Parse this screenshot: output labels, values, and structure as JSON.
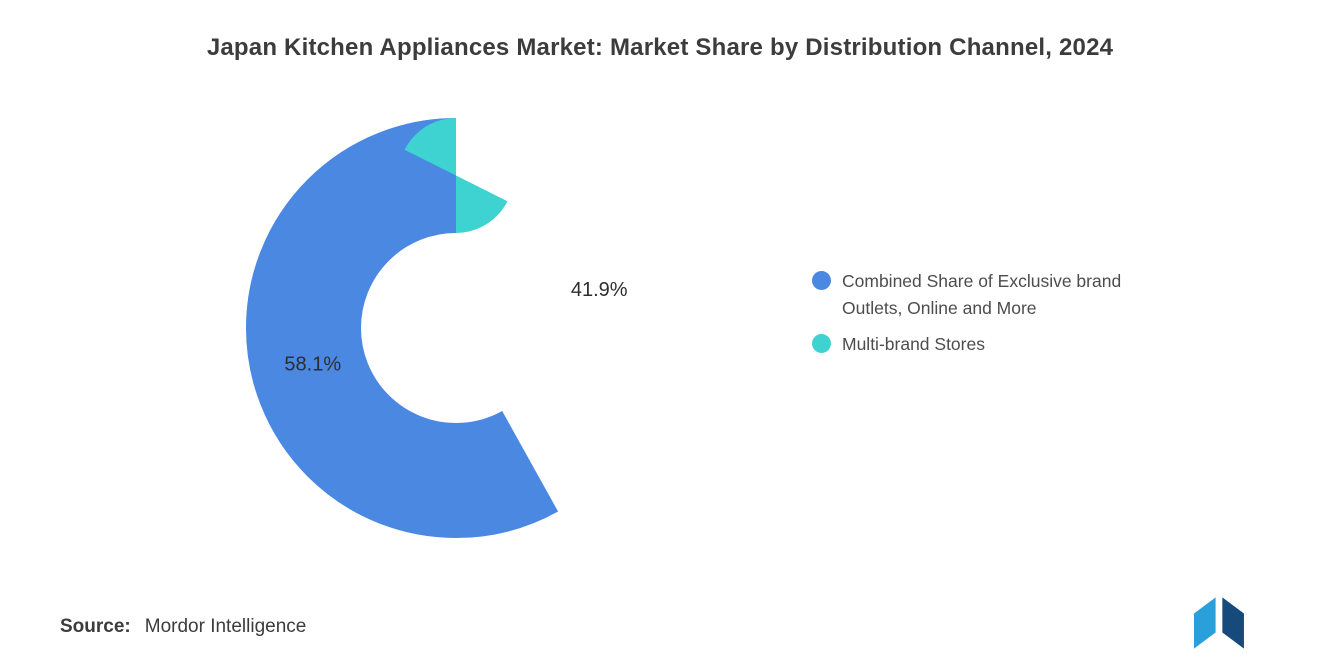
{
  "title": "Japan Kitchen Appliances Market: Market Share by Distribution Channel, 2024",
  "source": {
    "label": "Source:",
    "value": "Mordor Intelligence"
  },
  "chart_data": {
    "type": "pie",
    "donut": true,
    "title": "Japan Kitchen Appliances Market: Market Share by Distribution Channel, 2024",
    "legend_position": "right",
    "start_fraction": 0.419,
    "slices": [
      {
        "label": "Combined Share of Exclusive brand Outlets, Online and More",
        "value": 58.1,
        "display": "58.1%",
        "color": "#4a88e2"
      },
      {
        "label": "Multi-brand Stores",
        "value": 41.9,
        "display": "41.9%",
        "color": "#3ed3d0"
      }
    ]
  },
  "logo": {
    "name": "mordor-intelligence-logo",
    "color_left": "#2b9fd9",
    "color_right": "#174a7c"
  }
}
